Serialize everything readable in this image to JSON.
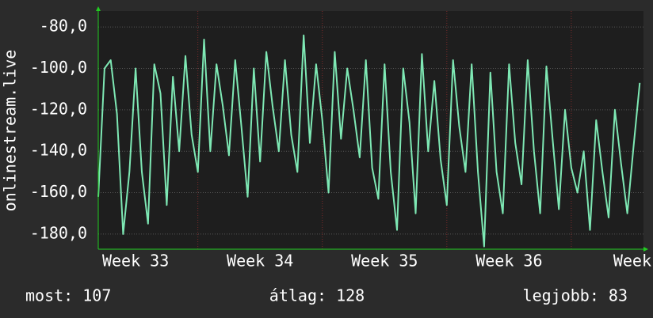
{
  "chart_data": {
    "type": "line",
    "y_label": "onlinestream.live",
    "x": [
      32.7,
      32.75,
      32.8,
      32.85,
      32.9,
      32.95,
      33.0,
      33.05,
      33.1,
      33.15,
      33.2,
      33.25,
      33.3,
      33.35,
      33.4,
      33.45,
      33.5,
      33.55,
      33.6,
      33.65,
      33.7,
      33.75,
      33.8,
      33.85,
      33.9,
      33.95,
      34.0,
      34.05,
      34.1,
      34.15,
      34.2,
      34.25,
      34.3,
      34.35,
      34.4,
      34.45,
      34.5,
      34.55,
      34.6,
      34.65,
      34.7,
      34.75,
      34.8,
      34.85,
      34.9,
      34.95,
      35.0,
      35.05,
      35.1,
      35.15,
      35.2,
      35.25,
      35.3,
      35.35,
      35.4,
      35.45,
      35.5,
      35.55,
      35.6,
      35.65,
      35.7,
      35.75,
      35.8,
      35.85,
      35.9,
      35.95,
      36.0,
      36.05,
      36.1,
      36.15,
      36.2,
      36.25,
      36.3,
      36.35,
      36.4,
      36.45,
      36.5,
      36.55,
      36.6,
      36.65,
      36.7,
      36.75,
      36.8,
      36.85,
      36.9,
      36.95,
      37.0,
      37.05
    ],
    "series": [
      {
        "name": "onlinestream.live",
        "color": "#7ee8b4",
        "values": [
          -162,
          -100,
          -96,
          -122,
          -180,
          -150,
          -100,
          -150,
          -175,
          -98,
          -112,
          -166,
          -104,
          -140,
          -94,
          -132,
          -150,
          -86,
          -140,
          -98,
          -118,
          -142,
          -96,
          -128,
          -162,
          -100,
          -145,
          -92,
          -118,
          -140,
          -96,
          -132,
          -150,
          -84,
          -136,
          -98,
          -125,
          -160,
          -92,
          -134,
          -100,
          -120,
          -143,
          -96,
          -148,
          -163,
          -98,
          -150,
          -178,
          -100,
          -126,
          -170,
          -93,
          -140,
          -106,
          -144,
          -166,
          -96,
          -128,
          -150,
          -98,
          -150,
          -186,
          -102,
          -150,
          -170,
          -98,
          -136,
          -156,
          -96,
          -140,
          -170,
          -99,
          -134,
          -168,
          -120,
          -148,
          -160,
          -140,
          -178,
          -125,
          -150,
          -172,
          -120,
          -146,
          -170,
          -138,
          -107
        ]
      }
    ],
    "xlim": [
      32.7,
      37.08
    ],
    "ylim": [
      -187.3,
      -72.3
    ],
    "xticks": [
      {
        "value": 33,
        "label": "Week 33"
      },
      {
        "value": 34,
        "label": "Week 34"
      },
      {
        "value": 35,
        "label": "Week 35"
      },
      {
        "value": 36,
        "label": "Week 36"
      },
      {
        "value": 37,
        "label": "Week"
      }
    ],
    "yticks": [
      {
        "value": -80,
        "label": "-80,0"
      },
      {
        "value": -100,
        "label": "-100,0"
      },
      {
        "value": -120,
        "label": "-120,0"
      },
      {
        "value": -140,
        "label": "-140,0"
      },
      {
        "value": -160,
        "label": "-160,0"
      },
      {
        "value": -180,
        "label": "-180,0"
      }
    ],
    "grid": true,
    "stats": [
      {
        "label": "most: 107",
        "value": 107
      },
      {
        "label": "átlag: 128",
        "value": 128
      },
      {
        "label": "legjobb: 83",
        "value": 83
      }
    ]
  }
}
